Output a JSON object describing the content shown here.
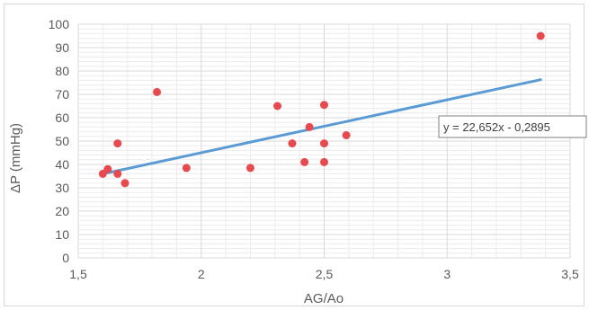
{
  "chart_data": {
    "type": "scatter",
    "title": "",
    "xlabel": "AG/Ao",
    "ylabel": "ΔP  (mmHg)",
    "xlim": [
      1.5,
      3.5
    ],
    "ylim": [
      0,
      100
    ],
    "x_ticks": [
      1.5,
      2,
      2.5,
      3,
      3.5
    ],
    "x_tick_labels": [
      "1,5",
      "2",
      "2,5",
      "3",
      "3,5"
    ],
    "y_ticks": [
      0,
      10,
      20,
      30,
      40,
      50,
      60,
      70,
      80,
      90,
      100
    ],
    "y_tick_labels": [
      "0",
      "10",
      "20",
      "30",
      "40",
      "50",
      "60",
      "70",
      "80",
      "90",
      "100"
    ],
    "grid": true,
    "points": [
      {
        "x": 1.6,
        "y": 36
      },
      {
        "x": 1.62,
        "y": 38
      },
      {
        "x": 1.66,
        "y": 36
      },
      {
        "x": 1.66,
        "y": 49
      },
      {
        "x": 1.69,
        "y": 32
      },
      {
        "x": 1.82,
        "y": 71
      },
      {
        "x": 1.94,
        "y": 38.5
      },
      {
        "x": 2.2,
        "y": 38.5
      },
      {
        "x": 2.31,
        "y": 65
      },
      {
        "x": 2.37,
        "y": 49
      },
      {
        "x": 2.42,
        "y": 41
      },
      {
        "x": 2.44,
        "y": 56
      },
      {
        "x": 2.5,
        "y": 65.5
      },
      {
        "x": 2.5,
        "y": 49
      },
      {
        "x": 2.5,
        "y": 41
      },
      {
        "x": 2.59,
        "y": 52.5
      },
      {
        "x": 3.38,
        "y": 95
      }
    ],
    "trendline": {
      "slope": 22.652,
      "intercept": -0.2895,
      "x_start": 1.6,
      "x_end": 3.38,
      "label": "y = 22,652x - 0,2895"
    },
    "colors": {
      "points": "#e8494f",
      "trendline": "#5b9bd5",
      "grid": "#d9d9d9"
    }
  }
}
